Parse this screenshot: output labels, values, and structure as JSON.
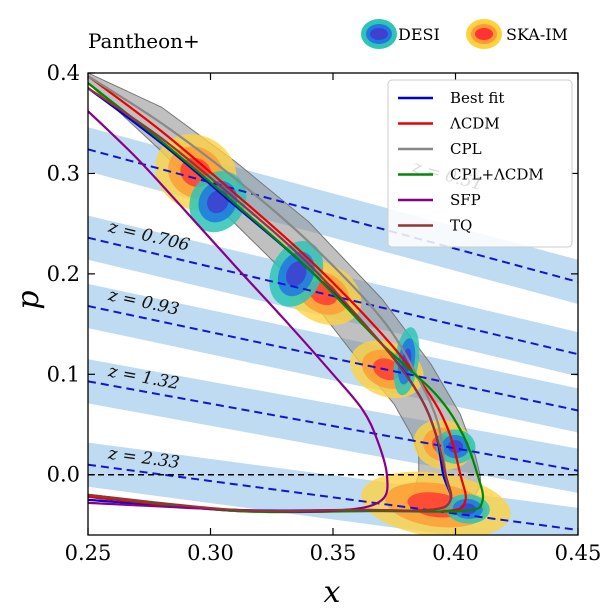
{
  "chart_data": {
    "type": "line",
    "title": "Pantheon+",
    "xlabel": "x",
    "ylabel": "p",
    "xlim": [
      0.25,
      0.45
    ],
    "ylim": [
      -0.06,
      0.4
    ],
    "xticks": [
      "0.25",
      "0.30",
      "0.35",
      "0.40",
      "0.45"
    ],
    "yticks": [
      "0.0",
      "0.1",
      "0.2",
      "0.3",
      "0.4"
    ],
    "grid": false,
    "legend": {
      "placement": "top-right",
      "entries": [
        {
          "name": "Best fit",
          "color": "#0000dd"
        },
        {
          "name": "ΛCDM",
          "color": "#ee0000"
        },
        {
          "name": "CPL",
          "color": "#888888"
        },
        {
          "name": "CPL+ΛCDM",
          "color": "#008800"
        },
        {
          "name": "SFP",
          "color": "#880088"
        },
        {
          "name": "TQ",
          "color": "#993333"
        }
      ]
    },
    "surveys": [
      {
        "name": "DESI",
        "colors": [
          "#2ec4b6",
          "#1f77e0",
          "#4040d0"
        ]
      },
      {
        "name": "SKA-IM",
        "colors": [
          "#ffd23f",
          "#ff9933",
          "#ff3333"
        ]
      }
    ],
    "redshift_lines": [
      {
        "label": "z = 0.51",
        "x": [
          0.25,
          0.45
        ],
        "y": [
          0.324,
          0.192
        ],
        "label_at": [
          0.382,
          0.302
        ]
      },
      {
        "label": "z = 0.706",
        "x": [
          0.25,
          0.45
        ],
        "y": [
          0.236,
          0.12
        ],
        "label_at": [
          0.258,
          0.242
        ]
      },
      {
        "label": "z = 0.93",
        "x": [
          0.25,
          0.45
        ],
        "y": [
          0.168,
          0.064
        ],
        "label_at": [
          0.258,
          0.174
        ]
      },
      {
        "label": "z = 1.32",
        "x": [
          0.25,
          0.45
        ],
        "y": [
          0.093,
          0.004
        ],
        "label_at": [
          0.258,
          0.098
        ]
      },
      {
        "label": "z = 2.33",
        "x": [
          0.25,
          0.45
        ],
        "y": [
          0.01,
          -0.055
        ],
        "label_at": [
          0.258,
          0.016
        ]
      }
    ],
    "band_halfwidth_p": 0.022,
    "reference_line": {
      "y": 0.0,
      "style": "dashed",
      "color": "#000000"
    },
    "series": [
      {
        "name": "Best fit",
        "color": "#0000dd",
        "x": [
          0.25,
          0.28,
          0.31,
          0.34,
          0.37,
          0.385,
          0.392,
          0.395,
          0.398,
          0.39,
          0.36,
          0.31,
          0.25
        ],
        "y": [
          0.385,
          0.33,
          0.268,
          0.205,
          0.13,
          0.08,
          0.04,
          0.0,
          -0.025,
          -0.035,
          -0.035,
          -0.035,
          -0.025
        ]
      },
      {
        "name": "ΛCDM",
        "color": "#ee0000",
        "x": [
          0.25,
          0.28,
          0.31,
          0.34,
          0.37,
          0.388,
          0.397,
          0.402,
          0.404,
          0.397,
          0.365,
          0.31,
          0.25
        ],
        "y": [
          0.397,
          0.342,
          0.28,
          0.215,
          0.14,
          0.085,
          0.045,
          0.0,
          -0.026,
          -0.036,
          -0.036,
          -0.036,
          -0.022
        ]
      },
      {
        "name": "CPL",
        "color": "#888888",
        "x": [
          0.25,
          0.28,
          0.31,
          0.34,
          0.37,
          0.385,
          0.393,
          0.396,
          0.398,
          0.39,
          0.36,
          0.31,
          0.25
        ],
        "y": [
          0.397,
          0.35,
          0.295,
          0.232,
          0.155,
          0.095,
          0.05,
          0.0,
          -0.026,
          -0.036,
          -0.036,
          -0.036,
          -0.02
        ]
      },
      {
        "name": "CPL+ΛCDM",
        "color": "#008800",
        "x": [
          0.25,
          0.28,
          0.31,
          0.34,
          0.37,
          0.392,
          0.403,
          0.409,
          0.411,
          0.404,
          0.37,
          0.31,
          0.25
        ],
        "y": [
          0.39,
          0.332,
          0.27,
          0.205,
          0.13,
          0.08,
          0.04,
          0.0,
          -0.026,
          -0.036,
          -0.036,
          -0.036,
          -0.02
        ]
      },
      {
        "name": "SFP",
        "color": "#880088",
        "x": [
          0.25,
          0.27,
          0.29,
          0.31,
          0.33,
          0.35,
          0.362,
          0.368,
          0.372,
          0.37,
          0.355,
          0.32,
          0.25
        ],
        "y": [
          0.362,
          0.315,
          0.262,
          0.208,
          0.155,
          0.1,
          0.065,
          0.035,
          0.0,
          -0.025,
          -0.035,
          -0.036,
          -0.028
        ]
      },
      {
        "name": "TQ",
        "color": "#993333",
        "x": [
          0.25,
          0.28,
          0.31,
          0.34,
          0.37,
          0.385,
          0.392,
          0.396,
          0.398,
          0.39,
          0.36,
          0.31,
          0.25
        ],
        "y": [
          0.385,
          0.335,
          0.275,
          0.21,
          0.13,
          0.08,
          0.04,
          0.0,
          -0.025,
          -0.035,
          -0.035,
          -0.035,
          -0.02
        ]
      }
    ],
    "cpl_band": {
      "upper": {
        "x": [
          0.25,
          0.28,
          0.31,
          0.34,
          0.37,
          0.39,
          0.402,
          0.408,
          0.41
        ],
        "y": [
          0.4,
          0.366,
          0.312,
          0.252,
          0.175,
          0.11,
          0.06,
          0.02,
          0.0
        ]
      },
      "lower": {
        "x": [
          0.25,
          0.28,
          0.31,
          0.34,
          0.36,
          0.375,
          0.382,
          0.385,
          0.385
        ],
        "y": [
          0.39,
          0.322,
          0.25,
          0.178,
          0.115,
          0.07,
          0.04,
          0.02,
          0.0
        ]
      }
    },
    "error_ellipses": [
      {
        "survey": "SKA-IM",
        "center": [
          0.294,
          0.301
        ],
        "rx": 0.015,
        "ry": 0.042,
        "angle": -58
      },
      {
        "survey": "DESI",
        "center": [
          0.303,
          0.272
        ],
        "rx": 0.013,
        "ry": 0.027,
        "angle": -58
      },
      {
        "survey": "SKA-IM",
        "center": [
          0.346,
          0.181
        ],
        "rx": 0.012,
        "ry": 0.04,
        "angle": -62
      },
      {
        "survey": "DESI",
        "center": [
          0.335,
          0.2
        ],
        "rx": 0.014,
        "ry": 0.025,
        "angle": -65
      },
      {
        "survey": "SKA-IM",
        "center": [
          0.372,
          0.105
        ],
        "rx": 0.011,
        "ry": 0.038,
        "angle": -68
      },
      {
        "survey": "DESI",
        "center": [
          0.38,
          0.113
        ],
        "rx": 0.014,
        "ry": 0.012,
        "angle": -82
      },
      {
        "survey": "SKA-IM",
        "center": [
          0.395,
          0.03
        ],
        "rx": 0.01,
        "ry": 0.03,
        "angle": -75
      },
      {
        "survey": "DESI",
        "center": [
          0.4,
          0.028
        ],
        "rx": 0.007,
        "ry": 0.02,
        "angle": -85
      },
      {
        "survey": "SKA-IM",
        "center": [
          0.392,
          -0.03
        ],
        "rx": 0.013,
        "ry": 0.075,
        "angle": -82
      },
      {
        "survey": "DESI",
        "center": [
          0.405,
          -0.034
        ],
        "rx": 0.006,
        "ry": 0.022,
        "angle": -86
      }
    ]
  }
}
